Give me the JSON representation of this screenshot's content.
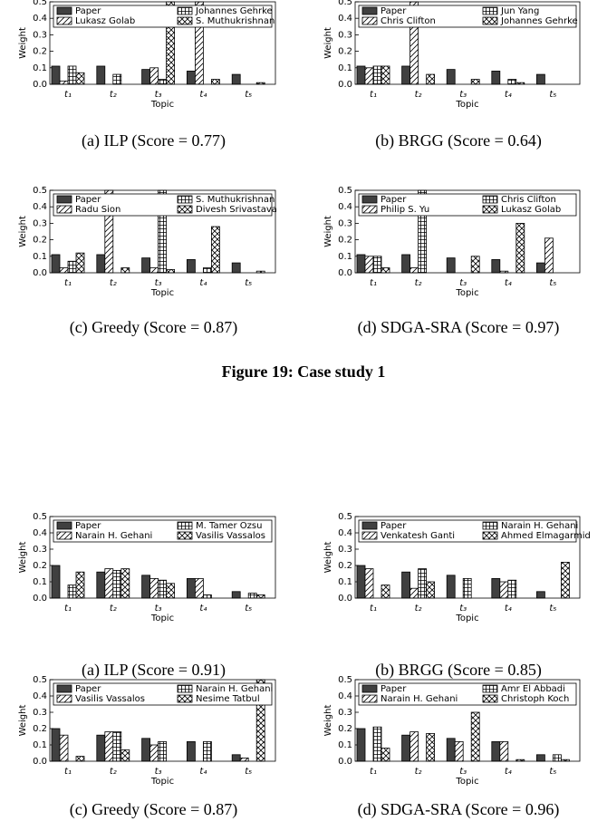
{
  "figure_caption": "Figure 19: Case study 1",
  "chart_data": [
    {
      "type": "bar",
      "caption": "(a) ILP (Score = 0.77)",
      "xlabel": "Topic",
      "ylabel": "Weight",
      "categories": [
        "t₁",
        "t₂",
        "t₃",
        "t₄",
        "t₅"
      ],
      "ylim": [
        0,
        0.5
      ],
      "yticks": [
        {
          "value": 0,
          "label": "0.0"
        },
        0.1,
        0.2,
        0.3,
        0.4,
        0.5
      ],
      "series": [
        {
          "name": "Paper",
          "color": "#404040",
          "values": [
            0.11,
            0.11,
            0.09,
            0.08,
            0.06
          ]
        },
        {
          "name": "Lukasz Golab",
          "color": "#ffffff",
          "hatch": "diagonal",
          "values": [
            0.02,
            0,
            0.1,
            0.5,
            0
          ]
        },
        {
          "name": "Johannes Gehrke",
          "color": "#ffffff",
          "hatch": "grid",
          "values": [
            0.11,
            0.06,
            0.03,
            0,
            0
          ]
        },
        {
          "name": "S. Muthukrishnan",
          "color": "#ffffff",
          "hatch": "crosshatch",
          "values": [
            0.07,
            0,
            0.5,
            0.03,
            0.01
          ]
        }
      ]
    },
    {
      "type": "bar",
      "caption": "(b) BRGG (Score = 0.64)",
      "xlabel": "Topic",
      "ylabel": "Weight",
      "categories": [
        "t₁",
        "t₂",
        "t₃",
        "t₄",
        "t₅"
      ],
      "ylim": [
        0,
        0.5
      ],
      "yticks": [
        {
          "value": 0,
          "label": "0.0"
        },
        0.1,
        0.2,
        0.3,
        0.4,
        0.5
      ],
      "series": [
        {
          "name": "Paper",
          "color": "#404040",
          "values": [
            0.11,
            0.11,
            0.09,
            0.08,
            0.06
          ]
        },
        {
          "name": "Chris Clifton",
          "color": "#ffffff",
          "hatch": "diagonal",
          "values": [
            0.1,
            0.5,
            0,
            0,
            0
          ]
        },
        {
          "name": "Jun Yang",
          "color": "#ffffff",
          "hatch": "grid",
          "values": [
            0.11,
            0,
            0,
            0.03,
            0
          ]
        },
        {
          "name": "Johannes Gehrke",
          "color": "#ffffff",
          "hatch": "crosshatch",
          "values": [
            0.11,
            0.06,
            0.03,
            0.01,
            0
          ]
        }
      ]
    },
    {
      "type": "bar",
      "caption": "(c) Greedy (Score = 0.87)",
      "xlabel": "Topic",
      "ylabel": "Weight",
      "categories": [
        "t₁",
        "t₂",
        "t₃",
        "t₄",
        "t₅"
      ],
      "ylim": [
        0,
        0.5
      ],
      "yticks": [
        {
          "value": 0,
          "label": "0.0"
        },
        0.1,
        0.2,
        0.3,
        0.4,
        0.5
      ],
      "series": [
        {
          "name": "Paper",
          "color": "#404040",
          "values": [
            0.11,
            0.11,
            0.09,
            0.08,
            0.06
          ]
        },
        {
          "name": "Radu Sion",
          "color": "#ffffff",
          "hatch": "diagonal",
          "values": [
            0.03,
            0.5,
            0.03,
            0,
            0
          ]
        },
        {
          "name": "S. Muthukrishnan",
          "color": "#ffffff",
          "hatch": "grid",
          "values": [
            0.07,
            0,
            0.5,
            0.03,
            0
          ]
        },
        {
          "name": "Divesh Srivastava",
          "color": "#ffffff",
          "hatch": "crosshatch",
          "values": [
            0.12,
            0.03,
            0.02,
            0.28,
            0.01
          ]
        }
      ]
    },
    {
      "type": "bar",
      "caption": "(d) SDGA-SRA (Score = 0.97)",
      "xlabel": "Topic",
      "ylabel": "Weight",
      "categories": [
        "t₁",
        "t₂",
        "t₃",
        "t₄",
        "t₅"
      ],
      "ylim": [
        0,
        0.5
      ],
      "yticks": [
        {
          "value": 0,
          "label": "0.0"
        },
        0.1,
        0.2,
        0.3,
        0.4,
        0.5
      ],
      "series": [
        {
          "name": "Paper",
          "color": "#404040",
          "values": [
            0.11,
            0.11,
            0.09,
            0.08,
            0.06
          ]
        },
        {
          "name": "Philip S. Yu",
          "color": "#ffffff",
          "hatch": "diagonal",
          "values": [
            0.1,
            0.03,
            0,
            0.01,
            0.21
          ]
        },
        {
          "name": "Chris Clifton",
          "color": "#ffffff",
          "hatch": "grid",
          "values": [
            0.1,
            0.5,
            0,
            0,
            0
          ]
        },
        {
          "name": "Lukasz Golab",
          "color": "#ffffff",
          "hatch": "crosshatch",
          "values": [
            0.03,
            0,
            0.1,
            0.3,
            0
          ]
        }
      ]
    },
    {
      "type": "bar",
      "caption": "(a) ILP (Score = 0.91)",
      "xlabel": "Topic",
      "ylabel": "Weight",
      "categories": [
        "t₁",
        "t₂",
        "t₃",
        "t₄",
        "t₅"
      ],
      "ylim": [
        0,
        0.5
      ],
      "yticks": [
        {
          "value": 0,
          "label": "0.0"
        },
        0.1,
        0.2,
        0.3,
        0.4,
        0.5
      ],
      "series": [
        {
          "name": "Paper",
          "color": "#404040",
          "values": [
            0.2,
            0.16,
            0.14,
            0.12,
            0.04
          ]
        },
        {
          "name": "Narain H. Gehani",
          "color": "#ffffff",
          "hatch": "diagonal",
          "values": [
            0,
            0.18,
            0.12,
            0.12,
            0
          ]
        },
        {
          "name": "M. Tamer Ozsu",
          "color": "#ffffff",
          "hatch": "grid",
          "values": [
            0.08,
            0.17,
            0.11,
            0.02,
            0.03
          ]
        },
        {
          "name": "Vasilis Vassalos",
          "color": "#ffffff",
          "hatch": "crosshatch",
          "values": [
            0.16,
            0.18,
            0.09,
            0,
            0.02
          ]
        }
      ]
    },
    {
      "type": "bar",
      "caption": "(b) BRGG (Score = 0.85)",
      "xlabel": "Topic",
      "ylabel": "Weight",
      "categories": [
        "t₁",
        "t₂",
        "t₃",
        "t₄",
        "t₅"
      ],
      "ylim": [
        0,
        0.5
      ],
      "yticks": [
        {
          "value": 0,
          "label": "0.0"
        },
        0.1,
        0.2,
        0.3,
        0.4,
        0.5
      ],
      "series": [
        {
          "name": "Paper",
          "color": "#404040",
          "values": [
            0.2,
            0.16,
            0.14,
            0.12,
            0.04
          ]
        },
        {
          "name": "Venkatesh Ganti",
          "color": "#ffffff",
          "hatch": "diagonal",
          "values": [
            0.18,
            0.06,
            0,
            0.1,
            0
          ]
        },
        {
          "name": "Narain H. Gehani",
          "color": "#ffffff",
          "hatch": "grid",
          "values": [
            0,
            0.18,
            0.12,
            0.11,
            0
          ]
        },
        {
          "name": "Ahmed Elmagarmid",
          "color": "#ffffff",
          "hatch": "crosshatch",
          "values": [
            0.08,
            0.1,
            0,
            0,
            0.22
          ]
        }
      ]
    },
    {
      "type": "bar",
      "caption": "(c) Greedy (Score = 0.87)",
      "xlabel": "Topic",
      "ylabel": "Weight",
      "categories": [
        "t₁",
        "t₂",
        "t₃",
        "t₄",
        "t₅"
      ],
      "ylim": [
        0,
        0.5
      ],
      "yticks": [
        {
          "value": 0,
          "label": "0.0"
        },
        0.1,
        0.2,
        0.3,
        0.4,
        0.5
      ],
      "series": [
        {
          "name": "Paper",
          "color": "#404040",
          "values": [
            0.2,
            0.16,
            0.14,
            0.12,
            0.04
          ]
        },
        {
          "name": "Vasilis Vassalos",
          "color": "#ffffff",
          "hatch": "diagonal",
          "values": [
            0.16,
            0.18,
            0.1,
            0,
            0.02
          ]
        },
        {
          "name": "Narain H. Gehani",
          "color": "#ffffff",
          "hatch": "grid",
          "values": [
            0,
            0.18,
            0.12,
            0.12,
            0
          ]
        },
        {
          "name": "Nesime Tatbul",
          "color": "#ffffff",
          "hatch": "crosshatch",
          "values": [
            0.03,
            0.07,
            0,
            0,
            0.5
          ]
        }
      ]
    },
    {
      "type": "bar",
      "caption": "(d) SDGA-SRA (Score = 0.96)",
      "xlabel": "Topic",
      "ylabel": "Weight",
      "categories": [
        "t₁",
        "t₂",
        "t₃",
        "t₄",
        "t₅"
      ],
      "ylim": [
        0,
        0.5
      ],
      "yticks": [
        {
          "value": 0,
          "label": "0.0"
        },
        0.1,
        0.2,
        0.3,
        0.4,
        0.5
      ],
      "series": [
        {
          "name": "Paper",
          "color": "#404040",
          "values": [
            0.2,
            0.16,
            0.14,
            0.12,
            0.04
          ]
        },
        {
          "name": "Narain H. Gehani",
          "color": "#ffffff",
          "hatch": "diagonal",
          "values": [
            0,
            0.18,
            0.12,
            0.12,
            0
          ]
        },
        {
          "name": "Amr El Abbadi",
          "color": "#ffffff",
          "hatch": "grid",
          "values": [
            0.21,
            0,
            0,
            0,
            0.04
          ]
        },
        {
          "name": "Christoph Koch",
          "color": "#ffffff",
          "hatch": "crosshatch",
          "values": [
            0.08,
            0.17,
            0.3,
            0.01,
            0.01
          ]
        }
      ]
    }
  ]
}
